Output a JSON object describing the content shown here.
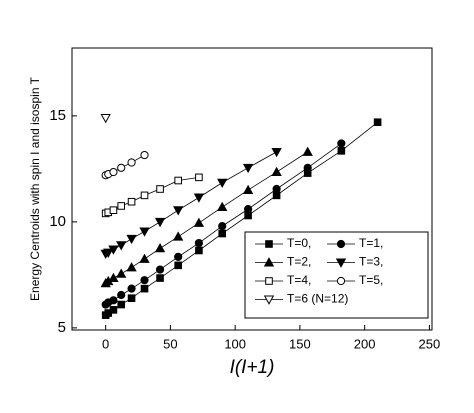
{
  "chart_data": {
    "type": "line",
    "x_label": "I(I+1)",
    "y_label": "Energy Centroids with spin  I and isospin  T",
    "xlim": [
      -26,
      252
    ],
    "ylim": [
      4.9,
      18.2
    ],
    "xticks": [
      0,
      50,
      100,
      150,
      200,
      250
    ],
    "yticks": [
      5,
      10,
      15
    ],
    "legend_position": "lower right",
    "series": [
      {
        "name": "T=0,",
        "color": "#000000",
        "marker": "square",
        "filled": true,
        "x": [
          0,
          2,
          6,
          12,
          20,
          30,
          42,
          56,
          72,
          90,
          110,
          132,
          156,
          182,
          210
        ],
        "values": [
          5.6,
          5.7,
          5.85,
          6.1,
          6.4,
          6.85,
          7.35,
          7.95,
          8.65,
          9.45,
          10.3,
          11.25,
          12.3,
          13.35,
          14.7
        ]
      },
      {
        "name": "T=1,",
        "color": "#000000",
        "marker": "circle",
        "filled": true,
        "x": [
          0,
          2,
          6,
          12,
          20,
          30,
          42,
          56,
          72,
          90,
          110,
          132,
          156,
          182
        ],
        "values": [
          6.1,
          6.2,
          6.3,
          6.55,
          6.85,
          7.25,
          7.75,
          8.35,
          9.0,
          9.8,
          10.6,
          11.55,
          12.55,
          13.7
        ]
      },
      {
        "name": "T=2,",
        "color": "#000000",
        "marker": "triangle-up",
        "filled": true,
        "x": [
          0,
          2,
          6,
          12,
          20,
          30,
          42,
          56,
          72,
          90,
          110,
          132,
          156
        ],
        "values": [
          7.1,
          7.2,
          7.35,
          7.55,
          7.85,
          8.25,
          8.75,
          9.3,
          9.95,
          10.7,
          11.5,
          12.35,
          13.3
        ]
      },
      {
        "name": "T=3,",
        "color": "#000000",
        "marker": "triangle-down",
        "filled": true,
        "x": [
          0,
          2,
          6,
          12,
          20,
          30,
          42,
          56,
          72,
          90,
          110,
          132
        ],
        "values": [
          8.5,
          8.55,
          8.7,
          8.9,
          9.2,
          9.55,
          10.0,
          10.55,
          11.15,
          11.85,
          12.55,
          13.3
        ]
      },
      {
        "name": "T=4,",
        "color": "#000000",
        "marker": "square",
        "filled": false,
        "x": [
          0,
          2,
          6,
          12,
          20,
          30,
          42,
          56,
          72
        ],
        "values": [
          10.4,
          10.45,
          10.55,
          10.75,
          10.95,
          11.25,
          11.55,
          11.95,
          12.1
        ]
      },
      {
        "name": "T=5,",
        "color": "#000000",
        "marker": "circle",
        "filled": false,
        "x": [
          0,
          2,
          6,
          12,
          20,
          30
        ],
        "values": [
          12.2,
          12.25,
          12.35,
          12.55,
          12.8,
          13.15
        ]
      },
      {
        "name": "T=6  (N=12)",
        "color": "#000000",
        "marker": "triangle-down",
        "filled": false,
        "x": [
          0
        ],
        "values": [
          14.9
        ]
      }
    ]
  }
}
